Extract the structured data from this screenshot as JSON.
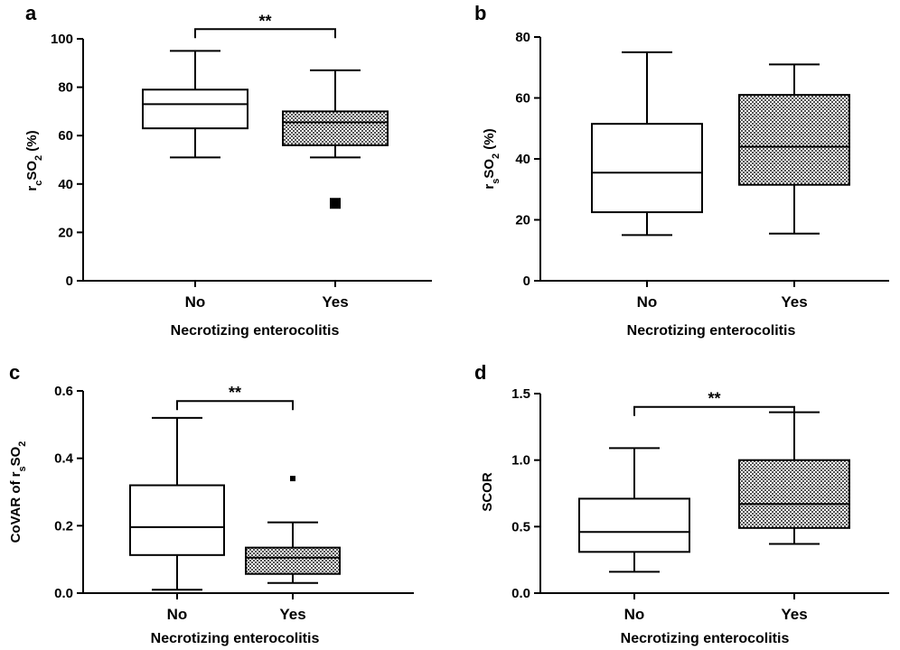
{
  "figure": {
    "xlabel": "Necrotizing enterocolitis"
  },
  "chart_data": [
    {
      "type": "box",
      "panel": "a",
      "ylabel": "rₓSO₂ (%)",
      "ylabel_main": "r",
      "ylabel_sub1": "c",
      "ylabel_mid": "SO",
      "ylabel_sub2": "2",
      "ylabel_tail": " (%)",
      "xlabel": "Necrotizing enterocolitis",
      "ylim": [
        0,
        100
      ],
      "yticks": [
        "0",
        "20",
        "40",
        "60",
        "80",
        "100"
      ],
      "yticks_values": [
        0,
        20,
        40,
        60,
        80,
        100
      ],
      "categories": [
        "No",
        "Yes"
      ],
      "boxes": [
        {
          "name": "No",
          "whisker_low": 51,
          "q1": 63,
          "median": 73,
          "q3": 79,
          "whisker_high": 95,
          "outliers": [],
          "hatched": false
        },
        {
          "name": "Yes",
          "whisker_low": 51,
          "q1": 56,
          "median": 65.5,
          "q3": 70,
          "whisker_high": 87,
          "outliers": [
            32
          ],
          "hatched": true
        }
      ],
      "significance": {
        "label": "**",
        "level": 104
      }
    },
    {
      "type": "box",
      "panel": "b",
      "ylabel_main": "r",
      "ylabel_sub1": "s",
      "ylabel_mid": "SO",
      "ylabel_sub2": "2",
      "ylabel_tail": " (%)",
      "xlabel": "Necrotizing enterocolitis",
      "ylim": [
        0,
        80
      ],
      "yticks": [
        "0",
        "20",
        "40",
        "60",
        "80"
      ],
      "yticks_values": [
        0,
        20,
        40,
        60,
        80
      ],
      "categories": [
        "No",
        "Yes"
      ],
      "boxes": [
        {
          "name": "No",
          "whisker_low": 15,
          "q1": 22.5,
          "median": 35.5,
          "q3": 51.5,
          "whisker_high": 75,
          "outliers": [],
          "hatched": false
        },
        {
          "name": "Yes",
          "whisker_low": 15.5,
          "q1": 31.5,
          "median": 44,
          "q3": 61,
          "whisker_high": 71,
          "outliers": [],
          "hatched": true
        }
      ],
      "significance": null
    },
    {
      "type": "box",
      "panel": "c",
      "ylabel_main": "CoVAR of r",
      "ylabel_sub1": "s",
      "ylabel_mid": "SO",
      "ylabel_sub2": "2",
      "ylabel_tail": "",
      "xlabel": "Necrotizing enterocolitis",
      "ylim": [
        0,
        0.6
      ],
      "yticks": [
        "0.0",
        "0.2",
        "0.4",
        "0.6"
      ],
      "yticks_values": [
        0,
        0.2,
        0.4,
        0.6
      ],
      "categories": [
        "No",
        "Yes"
      ],
      "boxes": [
        {
          "name": "No",
          "whisker_low": 0.01,
          "q1": 0.113,
          "median": 0.196,
          "q3": 0.32,
          "whisker_high": 0.52,
          "outliers": [],
          "hatched": false
        },
        {
          "name": "Yes",
          "whisker_low": 0.03,
          "q1": 0.057,
          "median": 0.105,
          "q3": 0.135,
          "whisker_high": 0.21,
          "outliers": [
            0.34
          ],
          "hatched": true
        }
      ],
      "significance": {
        "label": "**",
        "level": 0.57
      }
    },
    {
      "type": "box",
      "panel": "d",
      "ylabel_main": "SCOR",
      "ylabel_sub1": "",
      "ylabel_mid": "",
      "ylabel_sub2": "",
      "ylabel_tail": "",
      "xlabel": "Necrotizing enterocolitis",
      "ylim": [
        0,
        1.5
      ],
      "yticks": [
        "0.0",
        "0.5",
        "1.0",
        "1.5"
      ],
      "yticks_values": [
        0,
        0.5,
        1,
        1.5
      ],
      "categories": [
        "No",
        "Yes"
      ],
      "boxes": [
        {
          "name": "No",
          "whisker_low": 0.16,
          "q1": 0.31,
          "median": 0.46,
          "q3": 0.71,
          "whisker_high": 1.09,
          "outliers": [],
          "hatched": false
        },
        {
          "name": "Yes",
          "whisker_low": 0.37,
          "q1": 0.49,
          "median": 0.67,
          "q3": 1.0,
          "whisker_high": 1.36,
          "outliers": [],
          "hatched": true
        }
      ],
      "significance": {
        "label": "**",
        "level": 1.4
      }
    }
  ]
}
